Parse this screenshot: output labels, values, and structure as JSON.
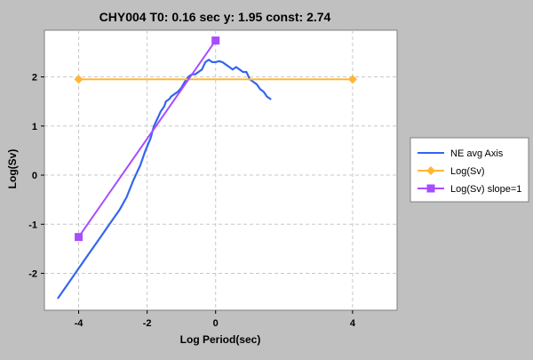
{
  "chart_data": {
    "type": "line",
    "title": "CHY004 T0: 0.16 sec  y: 1.95 const: 2.74",
    "xlabel": "Log Period(sec)",
    "ylabel": "Log(Sv)",
    "xlim": [
      -5,
      5.3
    ],
    "ylim": [
      -2.75,
      2.95
    ],
    "x_ticks": [
      -4,
      -2,
      0,
      4
    ],
    "y_ticks": [
      -2,
      -1,
      0,
      1,
      2
    ],
    "grid": true,
    "legend_position": "right",
    "series": [
      {
        "name": "NE avg Axis",
        "color": "#3366ee",
        "marker": "none",
        "x": [
          -4.6,
          -4.3,
          -4.0,
          -3.7,
          -3.4,
          -3.1,
          -2.8,
          -2.6,
          -2.4,
          -2.2,
          -2.05,
          -1.9,
          -1.8,
          -1.7,
          -1.6,
          -1.5,
          -1.45,
          -1.35,
          -1.3,
          -1.2,
          -1.1,
          -1.0,
          -0.9,
          -0.8,
          -0.7,
          -0.6,
          -0.5,
          -0.4,
          -0.3,
          -0.2,
          -0.1,
          0.0,
          0.1,
          0.2,
          0.3,
          0.4,
          0.5,
          0.6,
          0.7,
          0.8,
          0.9,
          1.0,
          1.1,
          1.2,
          1.3,
          1.4,
          1.5,
          1.6
        ],
        "values": [
          -2.5,
          -2.2,
          -1.9,
          -1.6,
          -1.3,
          -1.0,
          -0.7,
          -0.45,
          -0.1,
          0.2,
          0.5,
          0.75,
          1.0,
          1.15,
          1.3,
          1.4,
          1.5,
          1.55,
          1.6,
          1.65,
          1.7,
          1.78,
          1.9,
          2.0,
          2.05,
          2.05,
          2.1,
          2.15,
          2.3,
          2.35,
          2.3,
          2.3,
          2.32,
          2.3,
          2.25,
          2.2,
          2.15,
          2.2,
          2.15,
          2.1,
          2.1,
          1.95,
          1.9,
          1.85,
          1.75,
          1.7,
          1.6,
          1.55
        ]
      },
      {
        "name": "Log(Sv)",
        "color": "#ffb733",
        "marker": "diamond",
        "x": [
          -4,
          4
        ],
        "values": [
          1.95,
          1.95
        ]
      },
      {
        "name": "Log(Sv) slope=1",
        "color": "#a64dff",
        "marker": "square",
        "x": [
          -4,
          0
        ],
        "values": [
          -1.26,
          2.74
        ]
      }
    ]
  }
}
